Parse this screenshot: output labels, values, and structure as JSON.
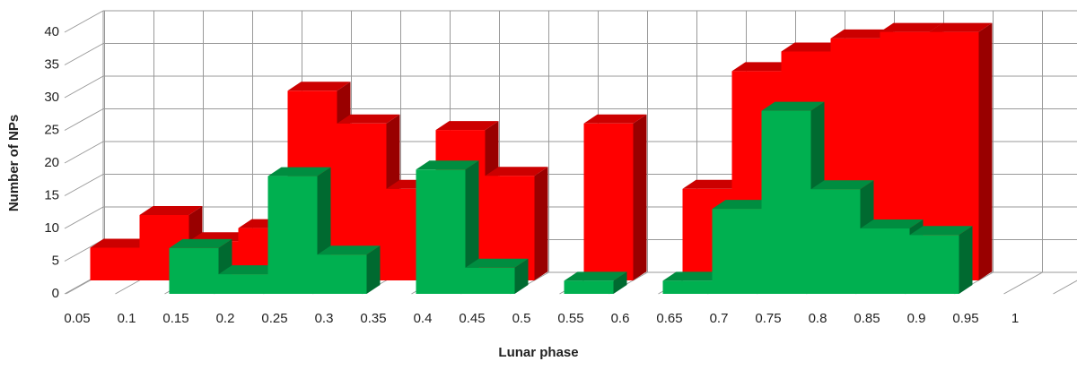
{
  "chart_data": {
    "type": "bar3d",
    "x_label": "Lunar phase",
    "y_label": "Number of NPs",
    "categories": [
      "0.05",
      "0.1",
      "0.15",
      "0.2",
      "0.25",
      "0.3",
      "0.35",
      "0.4",
      "0.45",
      "0.5",
      "0.55",
      "0.6",
      "0.65",
      "0.7",
      "0.75",
      "0.8",
      "0.85",
      "0.9",
      "0.95",
      "1"
    ],
    "series": [
      {
        "color": "#ff0000",
        "values": [
          5,
          10,
          6,
          8,
          29,
          24,
          14,
          23,
          16,
          0,
          24,
          0,
          14,
          32,
          35,
          37,
          38,
          38,
          0,
          0
        ]
      },
      {
        "color": "#00b050",
        "values": [
          0,
          0,
          7,
          3,
          18,
          6,
          0,
          19,
          4,
          0,
          2,
          0,
          2,
          13,
          28,
          16,
          10,
          9,
          0,
          0
        ]
      }
    ],
    "ylim": [
      0,
      40
    ],
    "yticks": [
      0,
      5,
      10,
      15,
      20,
      25,
      30,
      35,
      40
    ],
    "grid": true
  }
}
